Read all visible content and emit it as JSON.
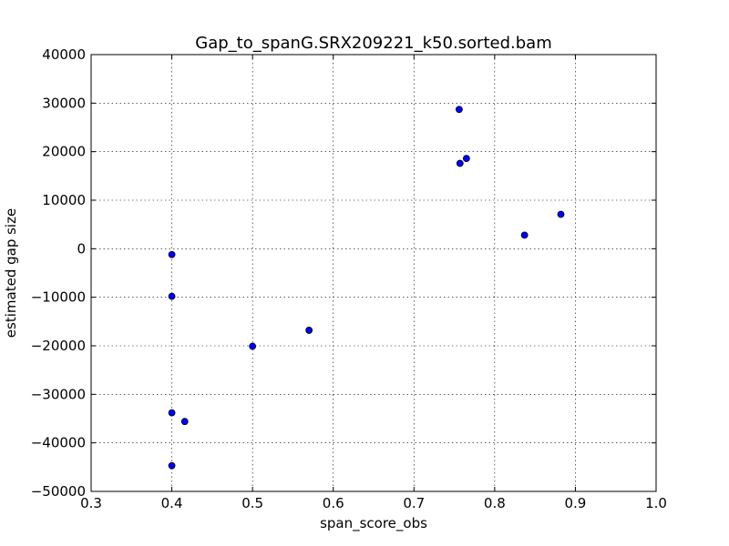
{
  "chart_data": {
    "type": "scatter",
    "title": "Gap_to_spanG.SRX209221_k50.sorted.bam",
    "xlabel": "span_score_obs",
    "ylabel": "estimated gap size",
    "xlim": [
      0.3,
      1.0
    ],
    "ylim": [
      -50000,
      40000
    ],
    "xticks": [
      0.3,
      0.4,
      0.5,
      0.6,
      0.7,
      0.8,
      0.9,
      1.0
    ],
    "xtick_labels": [
      "0.3",
      "0.4",
      "0.5",
      "0.6",
      "0.7",
      "0.8",
      "0.9",
      "1.0"
    ],
    "yticks": [
      -50000,
      -40000,
      -30000,
      -20000,
      -10000,
      0,
      10000,
      20000,
      30000,
      40000
    ],
    "ytick_labels": [
      "−50000",
      "−40000",
      "−30000",
      "−20000",
      "−10000",
      "0",
      "10000",
      "20000",
      "30000",
      "40000"
    ],
    "grid": true,
    "marker_color": "#0000ff",
    "points": [
      {
        "x": 0.4,
        "y": -1200
      },
      {
        "x": 0.4,
        "y": -9800
      },
      {
        "x": 0.4,
        "y": -33800
      },
      {
        "x": 0.4,
        "y": -44700
      },
      {
        "x": 0.416,
        "y": -35600
      },
      {
        "x": 0.5,
        "y": -20100
      },
      {
        "x": 0.57,
        "y": -16800
      },
      {
        "x": 0.756,
        "y": 28700
      },
      {
        "x": 0.757,
        "y": 17600
      },
      {
        "x": 0.765,
        "y": 18600
      },
      {
        "x": 0.837,
        "y": 2800
      },
      {
        "x": 0.882,
        "y": 7100
      }
    ]
  }
}
